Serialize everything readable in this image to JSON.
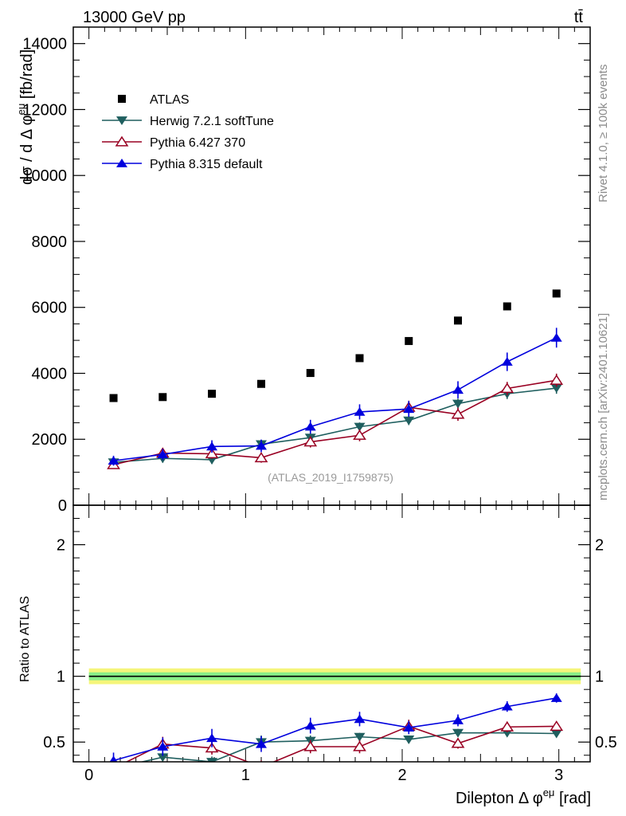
{
  "header": {
    "energy_label": "13000 GeV pp",
    "process_label": "tt̄"
  },
  "side_labels": {
    "rivet": "Rivet 4.1.0, ≥ 100k events",
    "mcplots": "mcplots.cern.ch [arXiv:2401.10621]"
  },
  "analysis_id": "(ATLAS_2019_I1759875)",
  "colors": {
    "atlas": "#000000",
    "herwig": "#1f5f5f",
    "pythia6": "#990022",
    "pythia8": "#0000dd",
    "band_yellow": "#f5f57a",
    "band_green": "#88ee88"
  },
  "chart_data": [
    {
      "type": "scatter",
      "panel": "main",
      "xlabel": "Dilepton Δ φ^eμ [rad]",
      "ylabel": "dσ / d Δ φ^eμ [fb/rad]",
      "xlim": [
        -0.1,
        3.2
      ],
      "ylim": [
        0,
        14500
      ],
      "yticks": [
        0,
        2000,
        4000,
        6000,
        8000,
        10000,
        12000,
        14000
      ],
      "ytick_labels": [
        "0",
        "2000",
        "4000",
        "6000",
        "8000",
        "10000",
        "12000",
        "14000"
      ],
      "x": [
        0.157,
        0.471,
        0.785,
        1.1,
        1.414,
        1.728,
        2.042,
        2.356,
        2.67,
        2.985
      ],
      "legend_position": "top-left",
      "series": [
        {
          "name": "ATLAS",
          "marker": "square",
          "values": [
            3250,
            3280,
            3380,
            3680,
            4010,
            4460,
            4980,
            5600,
            6030,
            6420
          ],
          "errors": [
            0,
            0,
            0,
            0,
            0,
            0,
            0,
            0,
            0,
            0
          ]
        },
        {
          "name": "Herwig 7.2.1 softTune",
          "marker": "triangle-down",
          "values": [
            1300,
            1420,
            1380,
            1850,
            2050,
            2380,
            2570,
            3080,
            3380,
            3550
          ],
          "errors": [
            130,
            130,
            130,
            130,
            130,
            130,
            140,
            150,
            160,
            170
          ]
        },
        {
          "name": "Pythia 6.427 370",
          "marker": "triangle-up-open",
          "values": [
            1230,
            1580,
            1560,
            1440,
            1920,
            2120,
            2970,
            2760,
            3540,
            3790
          ],
          "errors": [
            110,
            140,
            150,
            150,
            170,
            180,
            200,
            200,
            200,
            200
          ]
        },
        {
          "name": "Pythia 8.315 default",
          "marker": "triangle-up",
          "values": [
            1350,
            1540,
            1780,
            1800,
            2380,
            2830,
            2920,
            3500,
            4350,
            5080
          ],
          "errors": [
            150,
            170,
            190,
            190,
            210,
            230,
            240,
            260,
            280,
            300
          ]
        }
      ]
    },
    {
      "type": "line",
      "panel": "ratio",
      "ylabel": "Ratio to ATLAS",
      "xlabel": "Dilepton Δ φ^eμ [rad]",
      "xlim": [
        -0.1,
        3.2
      ],
      "ylim": [
        0.35,
        2.3
      ],
      "yticks": [
        0.5,
        1,
        2
      ],
      "ytick_labels": [
        "0.5",
        "1",
        "2"
      ],
      "xticks": [
        0,
        1,
        2,
        3
      ],
      "xtick_labels": [
        "0",
        "1",
        "2",
        "3"
      ],
      "x": [
        0.157,
        0.471,
        0.785,
        1.1,
        1.414,
        1.728,
        2.042,
        2.356,
        2.67,
        2.985
      ],
      "reference_line": 1,
      "band": {
        "yellow": [
          0.94,
          1.06
        ],
        "green": [
          0.97,
          1.03
        ]
      },
      "series": [
        {
          "name": "Herwig 7.2.1 softTune",
          "values": [
            0.3,
            0.385,
            0.35,
            0.5,
            0.51,
            0.54,
            0.52,
            0.57,
            0.57,
            0.565
          ],
          "errors": [
            0.04,
            0.04,
            0.04,
            0.05,
            0.04,
            0.03,
            0.03,
            0.03,
            0.03,
            0.03
          ]
        },
        {
          "name": "Pythia 6.427 370",
          "values": [
            0.3,
            0.485,
            0.455,
            0.31,
            0.465,
            0.465,
            0.62,
            0.49,
            0.615,
            0.62
          ],
          "errors": [
            0.05,
            0.055,
            0.05,
            0.05,
            0.05,
            0.05,
            0.05,
            0.04,
            0.04,
            0.035
          ]
        },
        {
          "name": "Pythia 8.315 default",
          "values": [
            0.36,
            0.465,
            0.53,
            0.485,
            0.625,
            0.675,
            0.61,
            0.665,
            0.77,
            0.835
          ],
          "errors": [
            0.06,
            0.07,
            0.07,
            0.06,
            0.06,
            0.055,
            0.05,
            0.045,
            0.04,
            0.035
          ]
        }
      ]
    }
  ]
}
